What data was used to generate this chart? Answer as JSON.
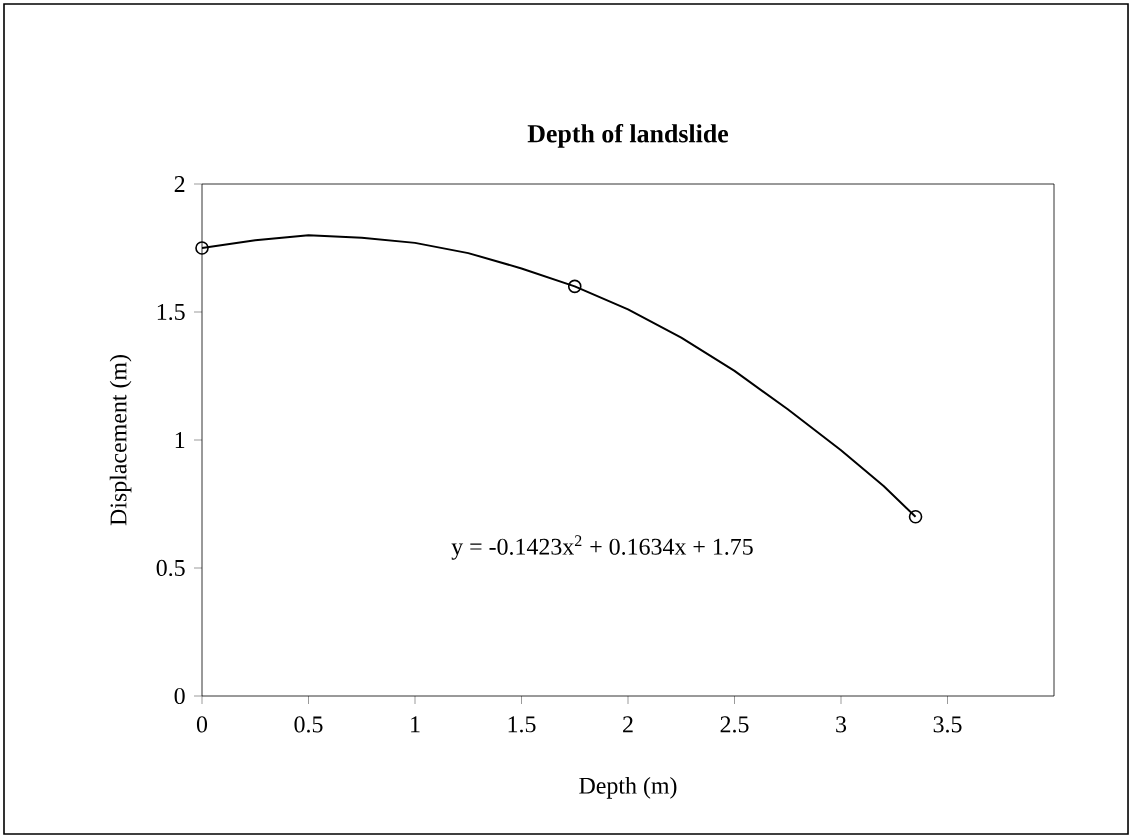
{
  "chart_data": {
    "type": "scatter",
    "title": "Depth of landslide",
    "xlabel": "Depth (m)",
    "ylabel": "Displacement (m)",
    "xlim": [
      0,
      4
    ],
    "xticks": [
      0,
      0.5,
      1,
      1.5,
      2,
      2.5,
      3,
      3.5
    ],
    "ylim": [
      0,
      2
    ],
    "yticks": [
      0,
      0.5,
      1,
      1.5,
      2
    ],
    "series": [
      {
        "color": "#000000",
        "marker": "circle",
        "x": [
          0,
          1.75,
          3.35
        ],
        "values": [
          1.75,
          1.6,
          0.7
        ]
      },
      {
        "type": "line",
        "color": "#000000",
        "marker": "none",
        "x": [
          0,
          0.25,
          0.5,
          0.75,
          1,
          1.25,
          1.5,
          1.75,
          2,
          2.25,
          2.5,
          2.75,
          3,
          3.2,
          3.35
        ],
        "values": [
          1.75,
          1.78,
          1.8,
          1.79,
          1.77,
          1.73,
          1.67,
          1.6,
          1.51,
          1.4,
          1.27,
          1.12,
          0.96,
          0.82,
          0.7
        ]
      }
    ],
    "annotations": [
      "y = -0.1423x$^{2}$ + 0.1634x + 1.75"
    ]
  }
}
